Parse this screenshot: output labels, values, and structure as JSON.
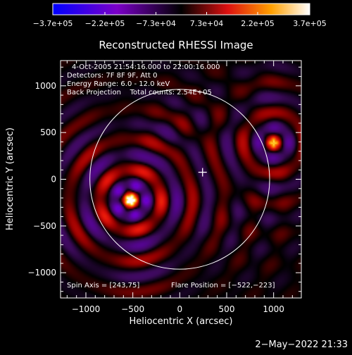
{
  "chart_data": {
    "type": "heatmap",
    "title": "Reconstructed RHESSI Image",
    "xlabel": "Heliocentric X (arcsec)",
    "ylabel": "Heliocentric Y (arcsec)",
    "xlim": [
      -1270,
      1295
    ],
    "ylim": [
      -1270,
      1270
    ],
    "xticks": [
      -1000,
      -500,
      0,
      500,
      1000
    ],
    "yticks": [
      -1000,
      -500,
      0,
      500,
      1000
    ],
    "xtick_labels": [
      "−1000",
      "−500",
      "0",
      "500",
      "1000"
    ],
    "ytick_labels": [
      "−1000",
      "−500",
      "0",
      "500",
      "1000"
    ],
    "colorbar": {
      "min": -370000,
      "max": 370000,
      "ticks": [
        -370000,
        -220000,
        -73000,
        73000,
        220000,
        370000
      ],
      "tick_labels": [
        "−3.7e+05",
        "−2.2e+05",
        "−7.3e+04",
        "7.3e+04",
        "2.2e+05",
        "3.7e+05"
      ]
    },
    "info_lines": [
      "4-Oct-2005 21:54:16.000 to 22:00:16.000",
      "Detectors: 7F 8F 9F, Att 0",
      "Energy Range: 6.0 - 12.0 keV",
      "Back Projection    Total counts: 2.54E+05"
    ],
    "spin_axis": "Spin Axis = [243,75]",
    "flare_position": "Flare Position = [−522,−223]",
    "spin_axis_xy": [
      243,
      75
    ],
    "solar_limb": {
      "center": [
        0,
        0
      ],
      "radius": 960
    },
    "sources": [
      {
        "x": -522,
        "y": -223
      },
      {
        "x": 1000,
        "y": 390
      }
    ],
    "grid": false
  },
  "footer": {
    "date": "2−May−2022 21:33"
  }
}
